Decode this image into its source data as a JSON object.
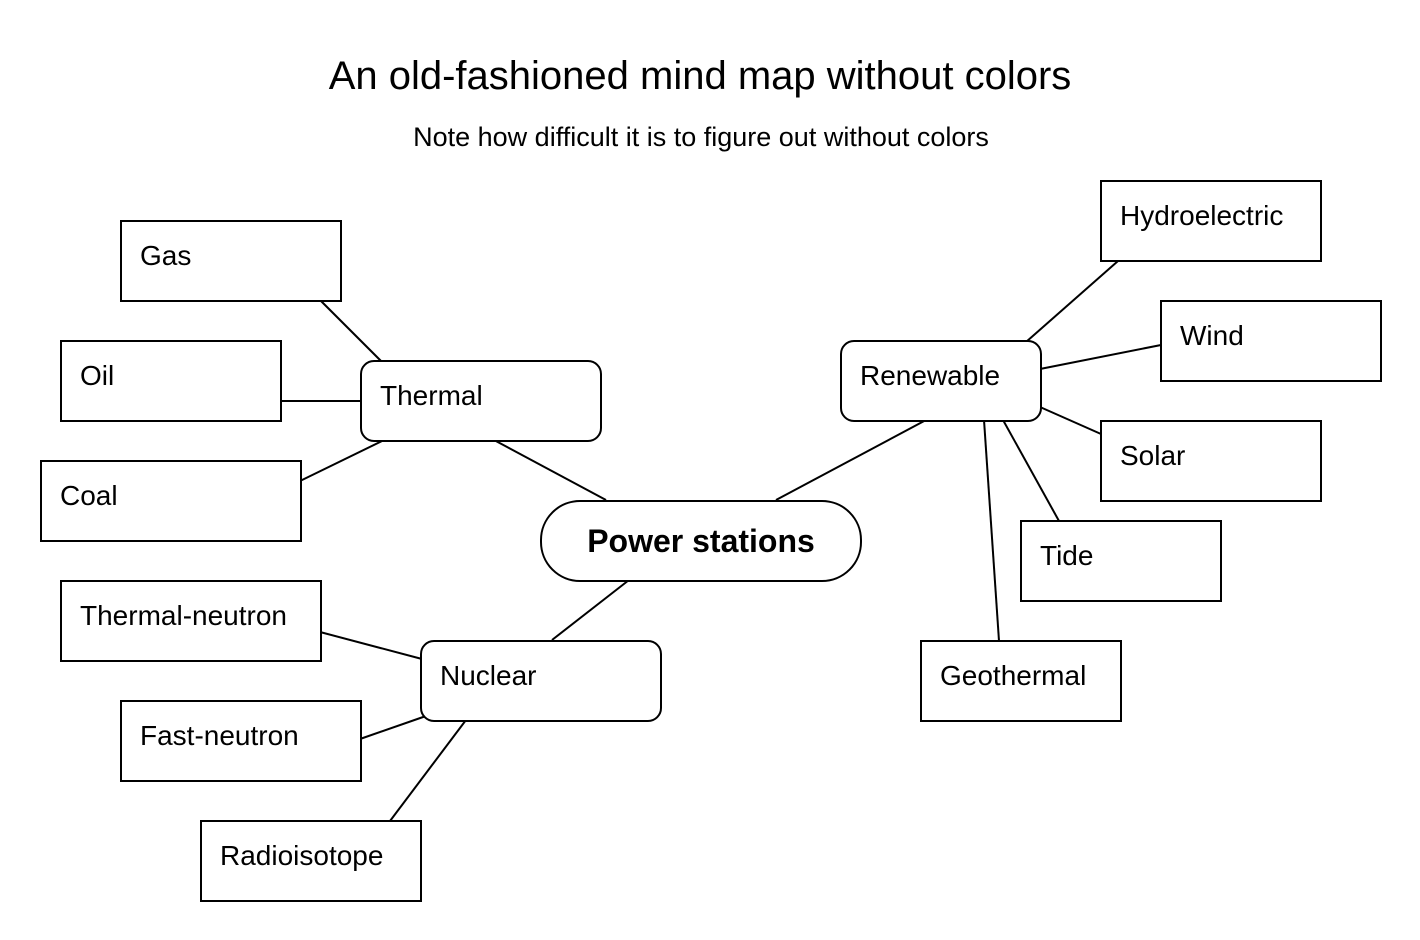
{
  "title": "An old-fashioned mind map without colors",
  "subtitle": "Note how difficult it is to figure out without colors",
  "root": {
    "label": "Power stations"
  },
  "branches": {
    "thermal": {
      "label": "Thermal",
      "children": [
        "Gas",
        "Oil",
        "Coal"
      ]
    },
    "nuclear": {
      "label": "Nuclear",
      "children": [
        "Thermal-neutron",
        "Fast-neutron",
        "Radioisotope"
      ]
    },
    "renewable": {
      "label": "Renewable",
      "children": [
        "Hydroelectric",
        "Wind",
        "Solar",
        "Tide",
        "Geothermal"
      ]
    }
  }
}
